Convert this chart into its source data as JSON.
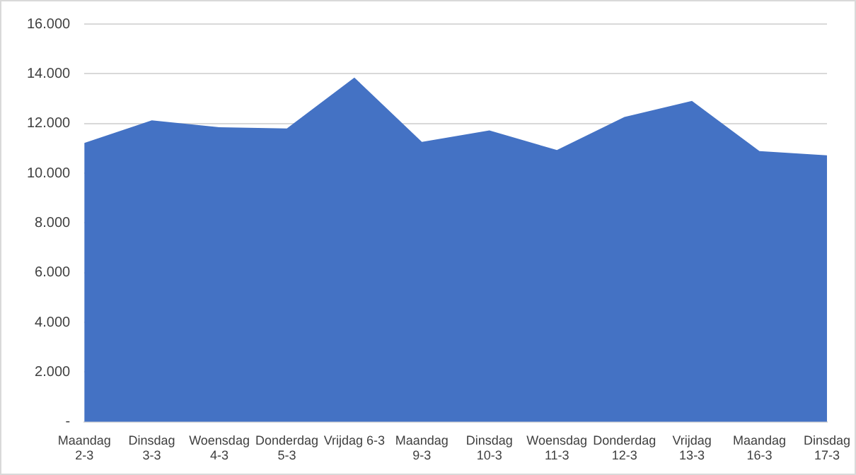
{
  "chart_data": {
    "type": "area",
    "categories": [
      "Maandag 2-3",
      "Dinsdag 3-3",
      "Woensdag 4-3",
      "Donderdag 5-3",
      "Vrijdag 6-3",
      "Maandag 9-3",
      "Dinsdag 10-3",
      "Woensdag 11-3",
      "Donderdag 12-3",
      "Vrijdag 13-3",
      "Maandag 16-3",
      "Dinsdag 17-3"
    ],
    "series": [
      {
        "color": "#4472c4",
        "values": [
          11220,
          12130,
          11850,
          11800,
          13850,
          11260,
          11720,
          10930,
          12260,
          12910,
          10890,
          10720
        ]
      }
    ],
    "ylim": [
      0,
      16000
    ],
    "yticks": [
      {
        "value": 0,
        "label": "-"
      },
      {
        "value": 2000,
        "label": "2.000"
      },
      {
        "value": 4000,
        "label": "4.000"
      },
      {
        "value": 6000,
        "label": "6.000"
      },
      {
        "value": 8000,
        "label": "8.000"
      },
      {
        "value": 10000,
        "label": "10.000"
      },
      {
        "value": 12000,
        "label": "12.000"
      },
      {
        "value": 14000,
        "label": "14.000"
      },
      {
        "value": 16000,
        "label": "16.000"
      }
    ],
    "grid": "y",
    "legend": false
  }
}
